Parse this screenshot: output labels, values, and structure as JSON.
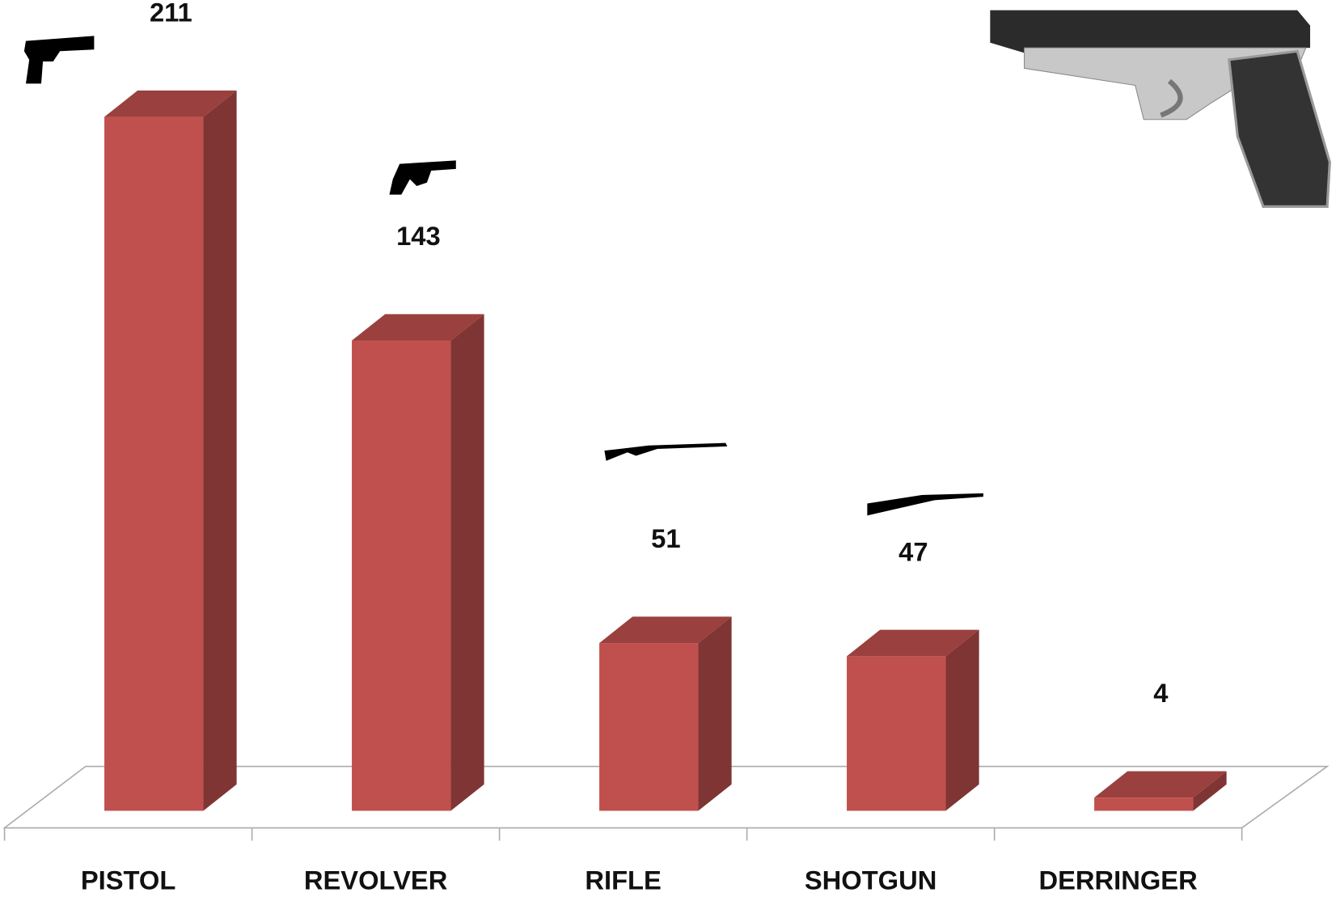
{
  "chart_data": {
    "type": "bar3d",
    "categories": [
      "PISTOL",
      "REVOLVER",
      "RIFLE",
      "SHOTGUN",
      "DERRINGER"
    ],
    "values": [
      211,
      143,
      51,
      47,
      4
    ],
    "color": "#c0504d"
  }
}
